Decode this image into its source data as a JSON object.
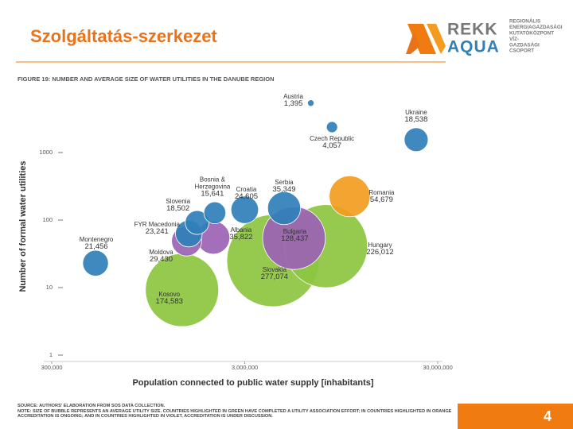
{
  "header": {
    "title": "Szolgáltatás-szerkezet",
    "logo_rekk": "REKK",
    "logo_aqua": "AQUA",
    "logo_lines": [
      "REGIONÁLIS",
      "ENERGIAGAZDASÁGI",
      "KUTATÓKÖZPONT",
      "VÍZ-",
      "GAZDASÁGI",
      "CSOPORT"
    ]
  },
  "chart_data": {
    "type": "bubble",
    "title": "FIGURE 19: NUMBER AND AVERAGE SIZE OF WATER UTILITIES IN THE DANUBE REGION",
    "x_label": "Population connected to public water supply [inhabitants]",
    "y_label": "Number of formal water utilities",
    "x_scale": "log",
    "y_scale": "log",
    "categories": [
      "Austria",
      "Ukraine",
      "Czech Republic",
      "Romania",
      "Serbia",
      "Croatia",
      "Bosnia & Herzegovina",
      "Slovenia",
      "FYR Macedonia",
      "Albania",
      "Moldova",
      "Montenegro",
      "Bulgaria",
      "Hungary",
      "Slovakia",
      "Kosovo"
    ],
    "x": [
      6600000,
      23200000,
      8500000,
      10500000,
      4800000,
      3000000,
      2100000,
      1700000,
      1540000,
      2060000,
      1500000,
      506000,
      5400000,
      7900000,
      4200000,
      1420000
    ],
    "values": [
      5400,
      1550,
      2380,
      225,
      150,
      142,
      128,
      92,
      63,
      55,
      49,
      23,
      54,
      41,
      25,
      9.2
    ],
    "sizes": [
      1395,
      18538,
      4057,
      54679,
      35349,
      24605,
      15641,
      18502,
      23241,
      35822,
      29430,
      21456,
      128437,
      226012,
      277074,
      174583
    ],
    "size_labels": [
      "1,395",
      "18,538",
      "4,057",
      "54,679",
      "35,349",
      "24,605",
      "15,641",
      "18,502",
      "23,241",
      "35,822",
      "29,430",
      "21,456",
      "128,437",
      "226,012",
      "277,074",
      "174,583"
    ],
    "colors": [
      "#2f7fb9",
      "#2f7fb9",
      "#2f7fb9",
      "#f39c1f",
      "#2f7fb9",
      "#2f7fb9",
      "#2f7fb9",
      "#2f7fb9",
      "#2f7fb9",
      "#9b62b4",
      "#9b62b4",
      "#2f7fb9",
      "#9b62b4",
      "#8cc63f",
      "#8cc63f",
      "#8cc63f"
    ],
    "xlim": [
      300000,
      30000000
    ],
    "xticks": [
      {
        "value": 300000,
        "label": "300,000"
      },
      {
        "value": 3000000,
        "label": "3,000,000"
      },
      {
        "value": 30000000,
        "label": "30,000,000"
      }
    ],
    "ylim": [
      1,
      10000
    ],
    "yticks": [
      1,
      10,
      100,
      1000
    ]
  },
  "notes": [
    "SOURCE: AUTHORS' ELABORATION FROM SOS DATA COLLECTION.",
    "NOTE: SIZE OF BUBBLE REPRESENTS AN AVERAGE UTILITY SIZE. COUNTRIES HIGHLIGHTED IN GREEN HAVE COMPLETED A UTILITY ASSOCIATION EFFORT; IN COUNTRIES HIGHLIGHTED IN ORANGE ACCREDITATION IS ONGOING; AND IN COUNTRIES HIGHLIGHTED IN VIOLET, ACCREDITATION IS UNDER DISCUSSION."
  ],
  "page_number": "4"
}
